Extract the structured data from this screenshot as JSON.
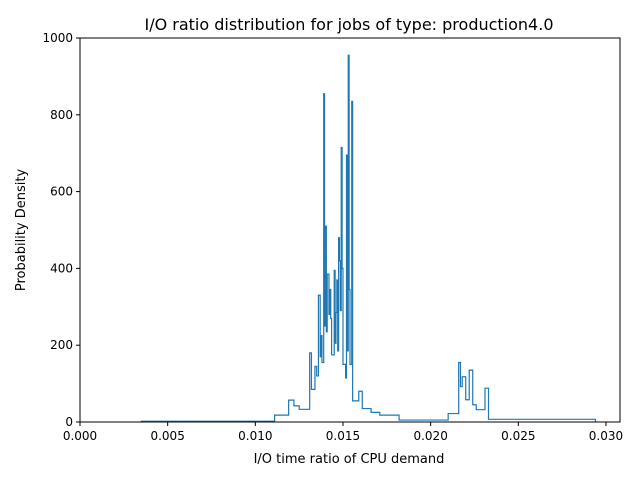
{
  "chart_data": {
    "type": "step-histogram",
    "title": "I/O ratio distribution for jobs of type: production4.0",
    "xlabel": "I/O time ratio of CPU demand",
    "ylabel": "Probability Density",
    "xlim": [
      0.0,
      0.0308
    ],
    "ylim": [
      0,
      1000
    ],
    "x_ticks": [
      "0.000",
      "0.005",
      "0.010",
      "0.015",
      "0.020",
      "0.025",
      "0.030"
    ],
    "y_ticks": [
      "0",
      "200",
      "400",
      "600",
      "800",
      "1000"
    ],
    "grid": false,
    "series_color": "#1f77b4",
    "points": [
      [
        0.0035,
        0
      ],
      [
        0.0035,
        2
      ],
      [
        0.0111,
        2
      ],
      [
        0.0111,
        18
      ],
      [
        0.0119,
        18
      ],
      [
        0.0119,
        57
      ],
      [
        0.0122,
        57
      ],
      [
        0.0122,
        42
      ],
      [
        0.0125,
        42
      ],
      [
        0.0125,
        33
      ],
      [
        0.0131,
        33
      ],
      [
        0.0131,
        180
      ],
      [
        0.0132,
        180
      ],
      [
        0.0132,
        85
      ],
      [
        0.0134,
        85
      ],
      [
        0.0134,
        145
      ],
      [
        0.0135,
        145
      ],
      [
        0.0135,
        120
      ],
      [
        0.0136,
        120
      ],
      [
        0.0136,
        330
      ],
      [
        0.0137,
        330
      ],
      [
        0.0137,
        170
      ],
      [
        0.01375,
        170
      ],
      [
        0.01375,
        225
      ],
      [
        0.0138,
        225
      ],
      [
        0.0138,
        155
      ],
      [
        0.0139,
        155
      ],
      [
        0.0139,
        855
      ],
      [
        0.01395,
        855
      ],
      [
        0.01395,
        250
      ],
      [
        0.014,
        250
      ],
      [
        0.014,
        510
      ],
      [
        0.01405,
        510
      ],
      [
        0.01405,
        235
      ],
      [
        0.0141,
        235
      ],
      [
        0.0141,
        385
      ],
      [
        0.0142,
        385
      ],
      [
        0.0142,
        280
      ],
      [
        0.01425,
        280
      ],
      [
        0.01425,
        345
      ],
      [
        0.0143,
        345
      ],
      [
        0.0143,
        270
      ],
      [
        0.01435,
        270
      ],
      [
        0.01435,
        175
      ],
      [
        0.0145,
        175
      ],
      [
        0.0145,
        395
      ],
      [
        0.01455,
        395
      ],
      [
        0.01455,
        205
      ],
      [
        0.0146,
        205
      ],
      [
        0.0146,
        285
      ],
      [
        0.01465,
        285
      ],
      [
        0.01465,
        370
      ],
      [
        0.0147,
        370
      ],
      [
        0.0147,
        185
      ],
      [
        0.01475,
        185
      ],
      [
        0.01475,
        480
      ],
      [
        0.0148,
        480
      ],
      [
        0.0148,
        420
      ],
      [
        0.01485,
        420
      ],
      [
        0.01485,
        290
      ],
      [
        0.0149,
        290
      ],
      [
        0.0149,
        715
      ],
      [
        0.01495,
        715
      ],
      [
        0.01495,
        400
      ],
      [
        0.015,
        400
      ],
      [
        0.015,
        150
      ],
      [
        0.01515,
        150
      ],
      [
        0.01515,
        115
      ],
      [
        0.0152,
        115
      ],
      [
        0.0152,
        695
      ],
      [
        0.01525,
        695
      ],
      [
        0.01525,
        185
      ],
      [
        0.0153,
        185
      ],
      [
        0.0153,
        955
      ],
      [
        0.01535,
        955
      ],
      [
        0.01535,
        345
      ],
      [
        0.0154,
        345
      ],
      [
        0.0154,
        150
      ],
      [
        0.0155,
        150
      ],
      [
        0.0155,
        835
      ],
      [
        0.01555,
        835
      ],
      [
        0.01555,
        55
      ],
      [
        0.0159,
        55
      ],
      [
        0.0159,
        80
      ],
      [
        0.0161,
        80
      ],
      [
        0.0161,
        35
      ],
      [
        0.0166,
        35
      ],
      [
        0.0166,
        25
      ],
      [
        0.0171,
        25
      ],
      [
        0.0171,
        18
      ],
      [
        0.0182,
        18
      ],
      [
        0.0182,
        5
      ],
      [
        0.021,
        5
      ],
      [
        0.021,
        22
      ],
      [
        0.0216,
        22
      ],
      [
        0.0216,
        155
      ],
      [
        0.0217,
        155
      ],
      [
        0.0217,
        92
      ],
      [
        0.0218,
        92
      ],
      [
        0.0218,
        118
      ],
      [
        0.022,
        118
      ],
      [
        0.022,
        58
      ],
      [
        0.0222,
        58
      ],
      [
        0.0222,
        135
      ],
      [
        0.0224,
        135
      ],
      [
        0.0224,
        45
      ],
      [
        0.0226,
        45
      ],
      [
        0.0226,
        32
      ],
      [
        0.0231,
        32
      ],
      [
        0.0231,
        88
      ],
      [
        0.0233,
        88
      ],
      [
        0.0233,
        7
      ],
      [
        0.0294,
        7
      ],
      [
        0.0294,
        0
      ]
    ]
  }
}
